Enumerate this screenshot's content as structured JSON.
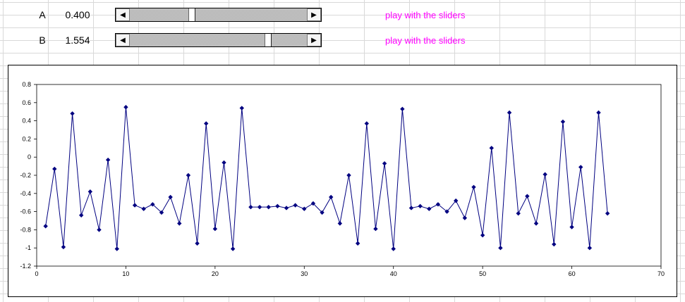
{
  "parameters": [
    {
      "name": "A",
      "value": "0.400",
      "slider_fraction": 0.35,
      "hint": "play with the sliders"
    },
    {
      "name": "B",
      "value": "1.554",
      "slider_fraction": 0.78,
      "hint": "play with the sliders"
    }
  ],
  "icons": {
    "slider_left": "left-arrow-icon",
    "slider_right": "right-arrow-icon"
  },
  "chart_data": {
    "type": "line",
    "title": "",
    "xlabel": "",
    "ylabel": "",
    "xlim": [
      0,
      70
    ],
    "ylim": [
      -1.2,
      0.8
    ],
    "x_ticks": [
      0,
      10,
      20,
      30,
      40,
      50,
      60,
      70
    ],
    "y_ticks": [
      0.8,
      0.6,
      0.4,
      0.2,
      0,
      -0.2,
      -0.4,
      -0.6,
      -0.8,
      -1,
      -1.2
    ],
    "grid": false,
    "legend": "none",
    "line_color": "#000080",
    "marker": "diamond",
    "series": [
      {
        "x": [
          1,
          2,
          3,
          4,
          5,
          6,
          7,
          8,
          9,
          10,
          11,
          12,
          13,
          14,
          15,
          16,
          17,
          18,
          19,
          20,
          21,
          22,
          23,
          24,
          25,
          26,
          27,
          28,
          29,
          30,
          31,
          32,
          33,
          34,
          35,
          36,
          37,
          38,
          39,
          40,
          41,
          42,
          43,
          44,
          45,
          46,
          47,
          48,
          49,
          50,
          51,
          52,
          53,
          54,
          55,
          56,
          57,
          58,
          59,
          60,
          61,
          62,
          63,
          64
        ],
        "y": [
          -0.76,
          -0.13,
          -0.99,
          0.48,
          -0.64,
          -0.38,
          -0.8,
          -0.03,
          -1.01,
          0.55,
          -0.53,
          -0.57,
          -0.52,
          -0.61,
          -0.44,
          -0.73,
          -0.2,
          -0.95,
          0.37,
          -0.79,
          -0.06,
          -1.01,
          0.54,
          -0.55,
          -0.55,
          -0.55,
          -0.54,
          -0.56,
          -0.53,
          -0.57,
          -0.51,
          -0.61,
          -0.44,
          -0.73,
          -0.2,
          -0.95,
          0.37,
          -0.79,
          -0.07,
          -1.01,
          0.53,
          -0.56,
          -0.54,
          -0.57,
          -0.52,
          -0.6,
          -0.48,
          -0.67,
          -0.33,
          -0.86,
          0.1,
          -1.0,
          0.49,
          -0.62,
          -0.43,
          -0.73,
          -0.19,
          -0.96,
          0.39,
          -0.77,
          -0.11,
          -1.0,
          0.49,
          -0.62
        ]
      }
    ]
  }
}
